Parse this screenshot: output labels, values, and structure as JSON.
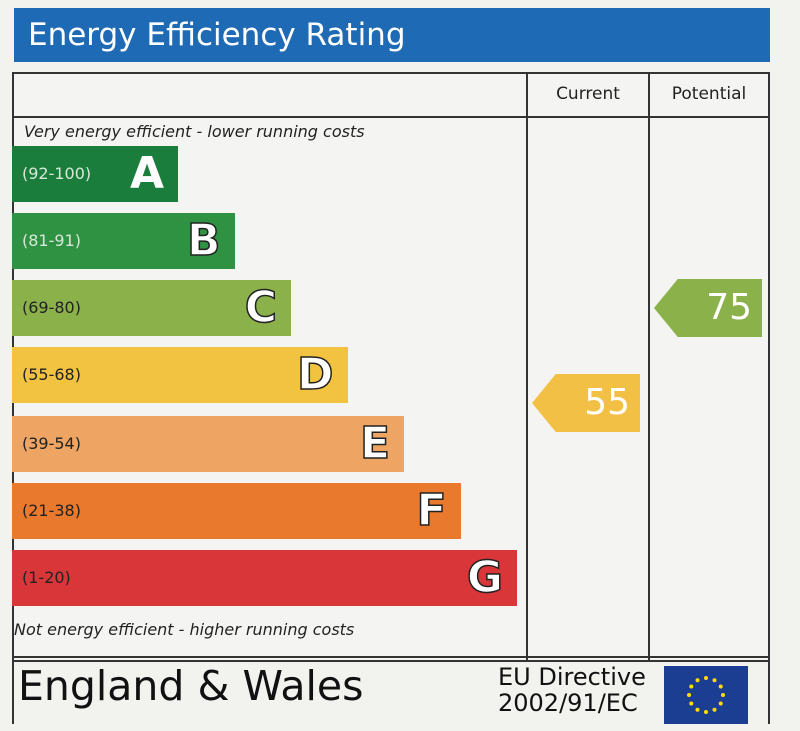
{
  "header": {
    "title": "Energy Efficiency Rating"
  },
  "columns": {
    "current": "Current",
    "potential": "Potential"
  },
  "notes": {
    "top": "Very energy efficient - lower running costs",
    "bottom": "Not energy efficient - higher running costs"
  },
  "footer": {
    "region": "England & Wales",
    "directive_line1": "EU Directive",
    "directive_line2": "2002/91/EC"
  },
  "colors": {
    "title_bar": "#1e6ab5",
    "current_arrow": "#f2c045",
    "potential_arrow": "#8bb24a",
    "flag": "#1b3e93",
    "stars": "#ffdd00"
  },
  "chart_data": {
    "type": "bar",
    "title": "Energy Efficiency Rating",
    "categories": [
      "A",
      "B",
      "C",
      "D",
      "E",
      "F",
      "G"
    ],
    "bands": [
      {
        "letter": "A",
        "range": "(92-100)",
        "min": 92,
        "max": 100,
        "color": "#1a7d3c"
      },
      {
        "letter": "B",
        "range": "(81-91)",
        "min": 81,
        "max": 91,
        "color": "#2f9142"
      },
      {
        "letter": "C",
        "range": "(69-80)",
        "min": 69,
        "max": 80,
        "color": "#8bb24a"
      },
      {
        "letter": "D",
        "range": "(55-68)",
        "min": 55,
        "max": 68,
        "color": "#f2c340"
      },
      {
        "letter": "E",
        "range": "(39-54)",
        "min": 39,
        "max": 54,
        "color": "#eea462"
      },
      {
        "letter": "F",
        "range": "(21-38)",
        "min": 21,
        "max": 38,
        "color": "#e9792d"
      },
      {
        "letter": "G",
        "range": "(1-20)",
        "min": 1,
        "max": 20,
        "color": "#d9363a"
      }
    ],
    "current": {
      "value": 55,
      "band": "D"
    },
    "potential": {
      "value": 75,
      "band": "C"
    }
  }
}
